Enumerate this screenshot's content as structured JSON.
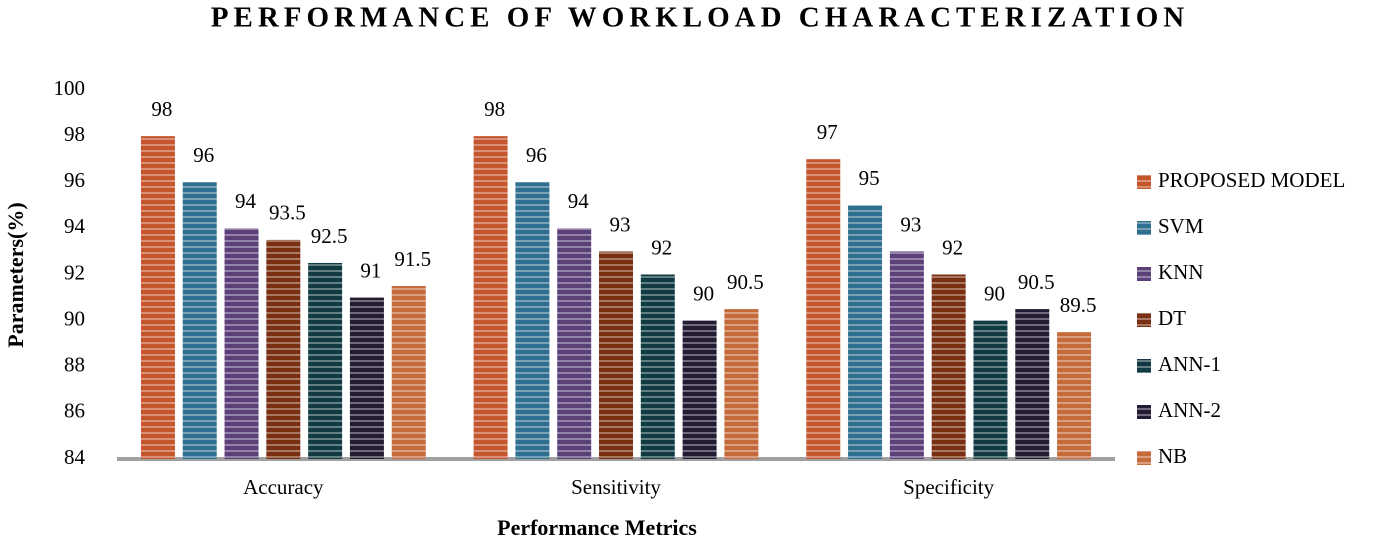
{
  "chart_data": {
    "type": "bar",
    "title": "PERFORMANCE OF WORKLOAD CHARACTERIZATION",
    "x_label": "Performance Metrics",
    "y_label": "Parameters(%)",
    "categories": [
      "Accuracy",
      "Sensitivity",
      "Specificity"
    ],
    "series": [
      {
        "name": "PROPOSED MODEL",
        "color": "#c4552c",
        "values": [
          98,
          98,
          97
        ]
      },
      {
        "name": "SVM",
        "color": "#2f6f8f",
        "values": [
          96,
          96,
          95
        ]
      },
      {
        "name": "KNN",
        "color": "#5b4079",
        "values": [
          94,
          94,
          93
        ]
      },
      {
        "name": "DT",
        "color": "#7b2f12",
        "values": [
          93.5,
          93,
          92
        ]
      },
      {
        "name": "ANN-1",
        "color": "#103b42",
        "values": [
          92.5,
          92,
          90
        ]
      },
      {
        "name": "ANN-2",
        "color": "#241c32",
        "values": [
          91,
          90,
          90.5
        ]
      },
      {
        "name": "NB",
        "color": "#c56b3b",
        "values": [
          91.5,
          90.5,
          89.5
        ]
      }
    ],
    "ylim": [
      84,
      100
    ],
    "yticks": [
      84,
      86,
      88,
      90,
      92,
      94,
      96,
      98,
      100
    ],
    "legend": "right"
  }
}
